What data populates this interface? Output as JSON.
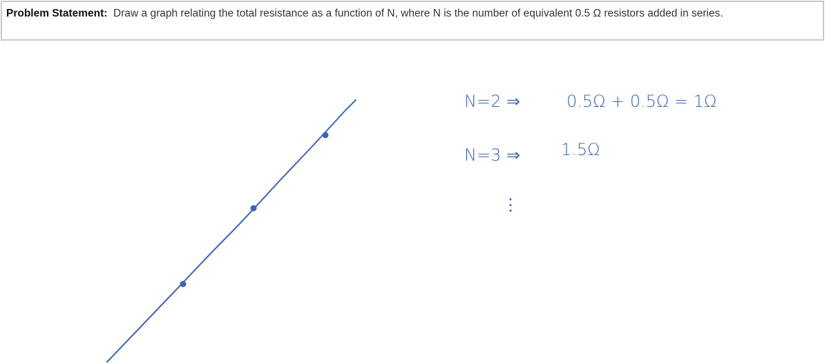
{
  "problem": {
    "label": "Problem Statement:",
    "text": "Draw a graph relating the total resistance as a function of N, where N is the number of equivalent 0.5 Ω resistors added in series."
  },
  "sketch": {
    "ink_color": "#3a64bc",
    "notes": [
      {
        "lhs": "N=2 ⇒",
        "rhs": "0.5Ω + 0.5Ω = 1Ω"
      },
      {
        "lhs": "N=3 ⇒",
        "rhs": "1.5Ω"
      }
    ],
    "ellipsis": "⋮"
  }
}
